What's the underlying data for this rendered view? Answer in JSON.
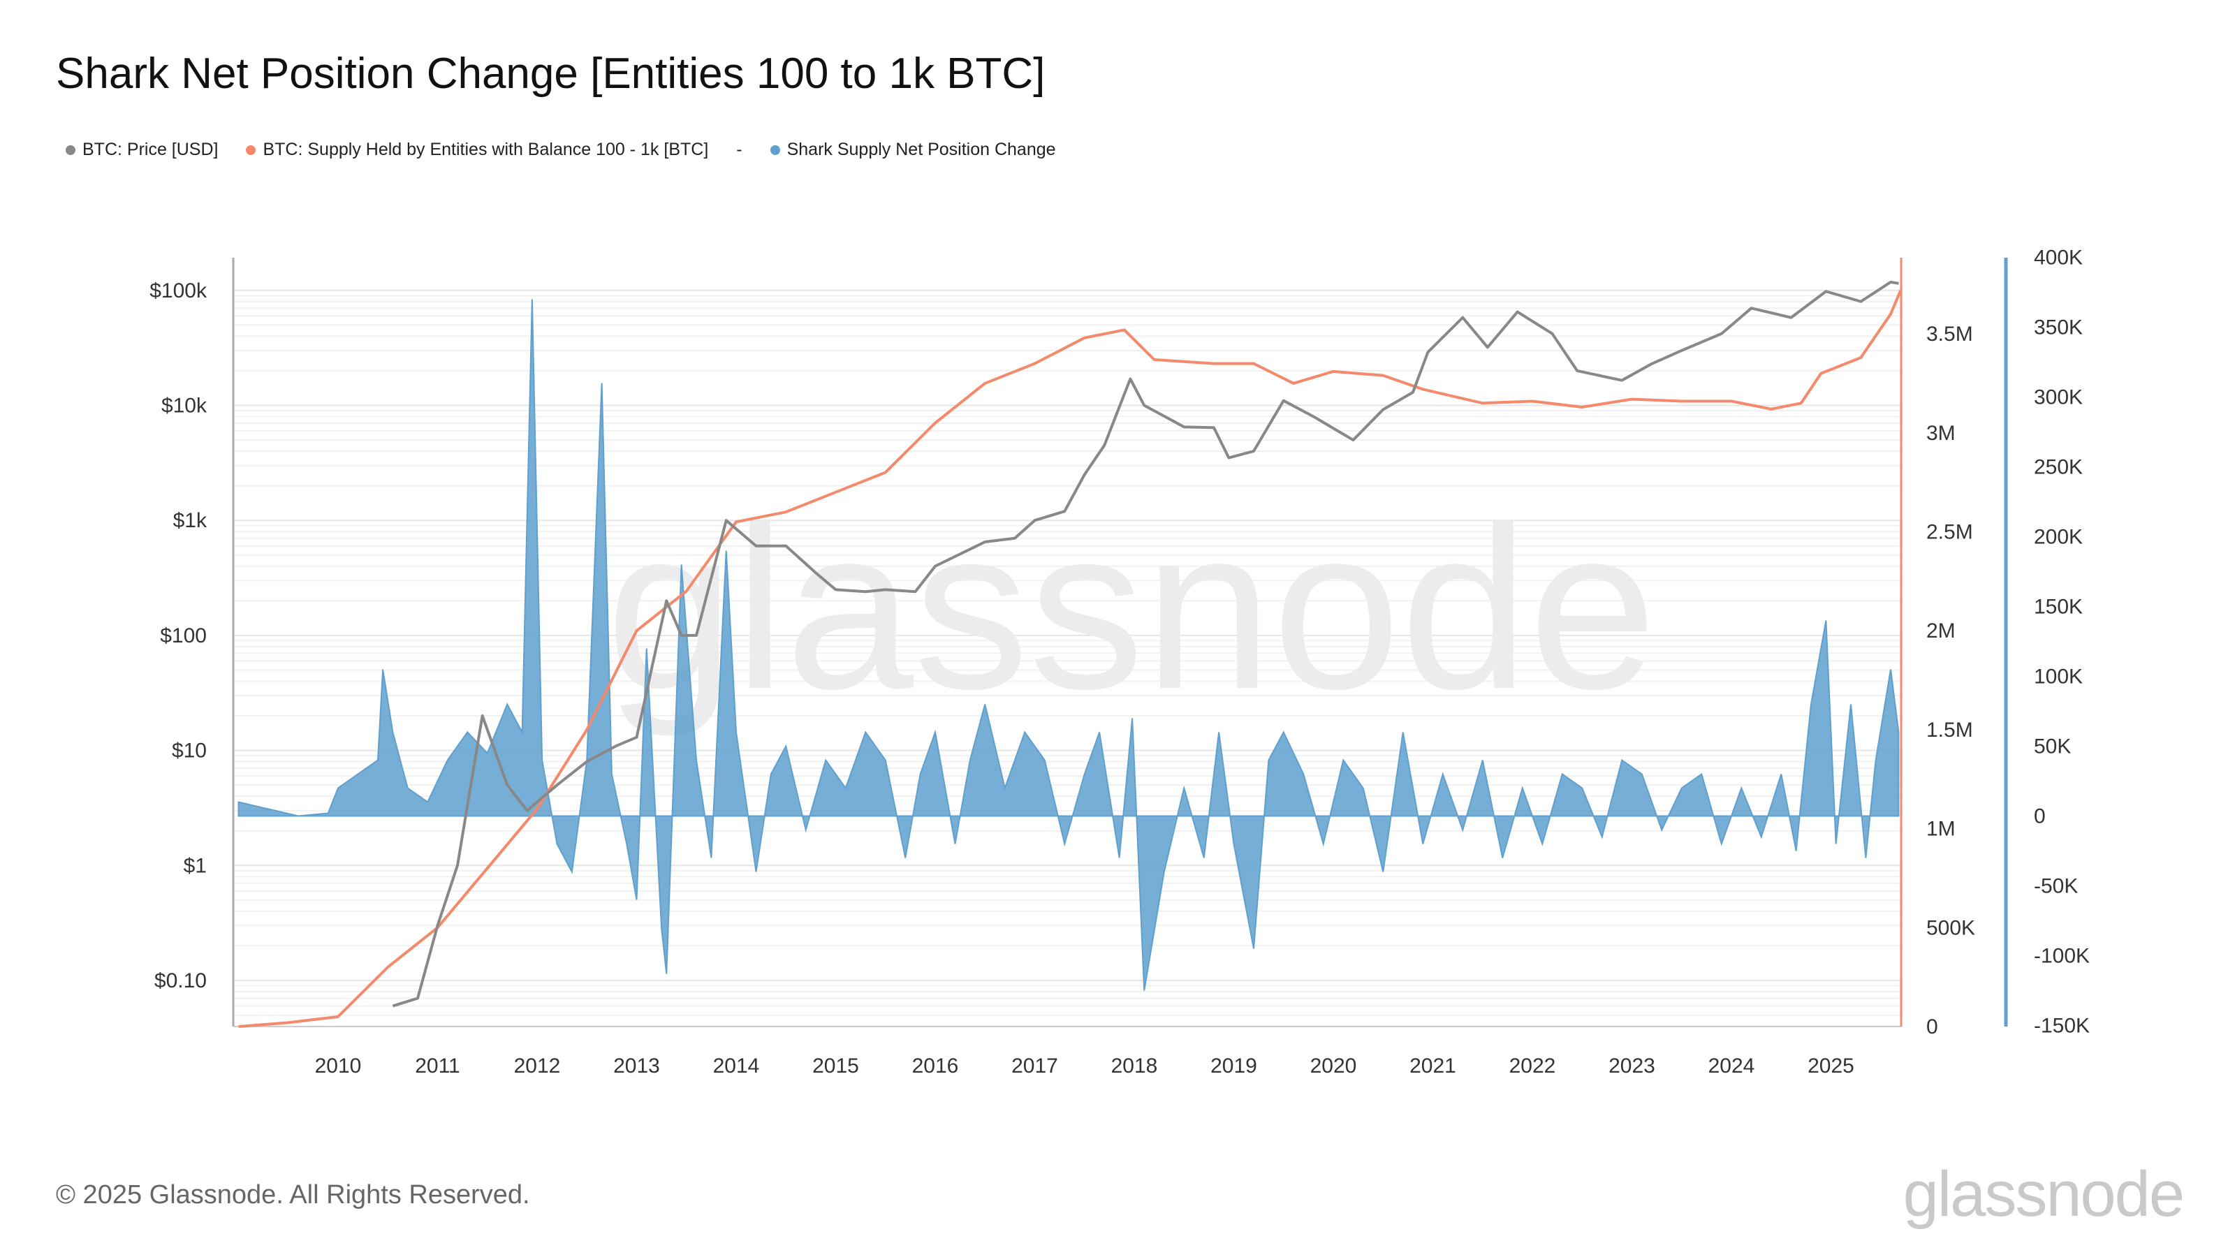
{
  "title": "Shark Net Position Change [Entities 100 to 1k BTC]",
  "legend": [
    {
      "label": "BTC: Price [USD]",
      "color": "#888888"
    },
    {
      "label": "BTC: Supply Held by Entities with Balance 100 - 1k [BTC]",
      "color": "#f4896b"
    },
    {
      "label": "-",
      "color": ""
    },
    {
      "label": "Shark Supply Net Position Change",
      "color": "#5fa0cf"
    }
  ],
  "footer": "© 2025 Glassnode. All Rights Reserved.",
  "logo": "glassnode",
  "watermark": "glassnode",
  "chart_data": {
    "type": "line",
    "title": "Shark Net Position Change [Entities 100 to 1k BTC]",
    "x_ticks": [
      "2010",
      "2011",
      "2012",
      "2013",
      "2014",
      "2015",
      "2016",
      "2017",
      "2018",
      "2019",
      "2020",
      "2021",
      "2022",
      "2023",
      "2024",
      "2025"
    ],
    "xlim": [
      2009.0,
      2025.7
    ],
    "grid": true,
    "legend_placement": "top-left",
    "left_axis": {
      "scale": "log",
      "ticks": [
        "$0.10",
        "$1",
        "$10",
        "$100",
        "$1k",
        "$10k",
        "$100k"
      ],
      "tick_values": [
        0.1,
        1,
        10,
        100,
        1000,
        10000,
        100000
      ]
    },
    "right_axis_1": {
      "ticks": [
        "0",
        "500K",
        "1M",
        "1.5M",
        "2M",
        "2.5M",
        "3M",
        "3.5M"
      ],
      "tick_values": [
        0,
        0.5,
        1,
        1.5,
        2,
        2.5,
        3,
        3.5
      ],
      "unit": "M"
    },
    "right_axis_2": {
      "ticks": [
        "-150K",
        "-100K",
        "-50K",
        "0",
        "50K",
        "100K",
        "150K",
        "200K",
        "250K",
        "300K",
        "350K",
        "400K"
      ],
      "tick_values": [
        -150,
        -100,
        -50,
        0,
        50,
        100,
        150,
        200,
        250,
        300,
        350,
        400
      ],
      "unit": "K"
    },
    "series": [
      {
        "name": "BTC: Price [USD]",
        "axis": "left",
        "color": "#888888",
        "type": "line",
        "x": [
          2010.55,
          2010.8,
          2011.0,
          2011.2,
          2011.45,
          2011.7,
          2011.9,
          2012.2,
          2012.5,
          2012.8,
          2013.0,
          2013.3,
          2013.45,
          2013.6,
          2013.9,
          2014.2,
          2014.5,
          2014.8,
          2015.0,
          2015.3,
          2015.5,
          2015.8,
          2016.0,
          2016.5,
          2016.8,
          2017.0,
          2017.3,
          2017.5,
          2017.7,
          2017.96,
          2018.1,
          2018.5,
          2018.8,
          2018.95,
          2019.2,
          2019.5,
          2019.8,
          2020.2,
          2020.5,
          2020.8,
          2020.95,
          2021.3,
          2021.55,
          2021.85,
          2022.2,
          2022.45,
          2022.9,
          2023.2,
          2023.5,
          2023.9,
          2024.2,
          2024.6,
          2024.95,
          2025.3,
          2025.6,
          2025.68
        ],
        "y": [
          0.06,
          0.07,
          0.3,
          1,
          20,
          5,
          3,
          5,
          8,
          11,
          13,
          200,
          100,
          100,
          1000,
          600,
          600,
          350,
          250,
          240,
          250,
          240,
          400,
          650,
          700,
          1000,
          1200,
          2500,
          4500,
          17000,
          10000,
          6500,
          6400,
          3500,
          4000,
          11000,
          8000,
          5000,
          9200,
          13000,
          29000,
          58000,
          32000,
          65000,
          42000,
          20000,
          16500,
          23000,
          30000,
          42000,
          70000,
          58000,
          98000,
          80000,
          118000,
          115000
        ]
      },
      {
        "name": "BTC: Supply Held by Entities with Balance 100 - 1k [BTC]",
        "axis": "right_1",
        "color": "#f4896b",
        "type": "line",
        "x": [
          2009.0,
          2009.5,
          2010.0,
          2010.5,
          2011.0,
          2011.5,
          2012.0,
          2012.5,
          2013.0,
          2013.5,
          2014.0,
          2014.5,
          2015.0,
          2015.5,
          2016.0,
          2016.5,
          2017.0,
          2017.5,
          2017.9,
          2018.2,
          2018.8,
          2019.2,
          2019.6,
          2020.0,
          2020.5,
          2020.9,
          2021.5,
          2022.0,
          2022.5,
          2023.0,
          2023.5,
          2024.0,
          2024.4,
          2024.7,
          2024.9,
          2025.3,
          2025.6,
          2025.7
        ],
        "y": [
          0,
          0.02,
          0.05,
          0.3,
          0.5,
          0.8,
          1.1,
          1.5,
          2.0,
          2.2,
          2.55,
          2.6,
          2.7,
          2.8,
          3.05,
          3.25,
          3.35,
          3.48,
          3.52,
          3.37,
          3.35,
          3.35,
          3.25,
          3.31,
          3.29,
          3.22,
          3.15,
          3.16,
          3.13,
          3.17,
          3.16,
          3.16,
          3.12,
          3.15,
          3.3,
          3.38,
          3.6,
          3.72
        ]
      },
      {
        "name": "Shark Supply Net Position Change",
        "axis": "right_2",
        "color": "#5fa0cf",
        "type": "area",
        "x": [
          2009.0,
          2009.3,
          2009.6,
          2009.9,
          2010.0,
          2010.2,
          2010.4,
          2010.45,
          2010.55,
          2010.7,
          2010.9,
          2011.1,
          2011.3,
          2011.5,
          2011.7,
          2011.85,
          2011.95,
          2012.05,
          2012.2,
          2012.35,
          2012.5,
          2012.65,
          2012.75,
          2012.9,
          2013.0,
          2013.1,
          2013.25,
          2013.3,
          2013.45,
          2013.6,
          2013.75,
          2013.9,
          2014.0,
          2014.2,
          2014.35,
          2014.5,
          2014.7,
          2014.9,
          2015.1,
          2015.3,
          2015.5,
          2015.7,
          2015.85,
          2016.0,
          2016.2,
          2016.35,
          2016.5,
          2016.7,
          2016.9,
          2017.1,
          2017.3,
          2017.5,
          2017.65,
          2017.85,
          2017.98,
          2018.1,
          2018.3,
          2018.5,
          2018.7,
          2018.85,
          2019.0,
          2019.2,
          2019.35,
          2019.5,
          2019.7,
          2019.9,
          2020.1,
          2020.3,
          2020.5,
          2020.7,
          2020.9,
          2021.1,
          2021.3,
          2021.5,
          2021.7,
          2021.9,
          2022.1,
          2022.3,
          2022.5,
          2022.7,
          2022.9,
          2023.1,
          2023.3,
          2023.5,
          2023.7,
          2023.9,
          2024.1,
          2024.3,
          2024.5,
          2024.65,
          2024.8,
          2024.95,
          2025.05,
          2025.2,
          2025.35,
          2025.45,
          2025.6,
          2025.68
        ],
        "y": [
          10,
          5,
          0,
          2,
          20,
          30,
          40,
          105,
          60,
          20,
          10,
          40,
          60,
          45,
          80,
          60,
          370,
          40,
          -20,
          -40,
          40,
          310,
          30,
          -20,
          -60,
          120,
          -80,
          -113,
          180,
          40,
          -30,
          190,
          60,
          -40,
          30,
          50,
          -10,
          40,
          20,
          60,
          40,
          -30,
          30,
          60,
          -20,
          40,
          80,
          20,
          60,
          40,
          -20,
          30,
          60,
          -30,
          70,
          -125,
          -40,
          20,
          -30,
          60,
          -20,
          -95,
          40,
          60,
          30,
          -20,
          40,
          20,
          -40,
          60,
          -20,
          30,
          -10,
          40,
          -30,
          20,
          -20,
          30,
          20,
          -15,
          40,
          30,
          -10,
          20,
          30,
          -20,
          20,
          -15,
          30,
          -25,
          80,
          140,
          -20,
          80,
          -30,
          40,
          105,
          60
        ]
      }
    ]
  }
}
